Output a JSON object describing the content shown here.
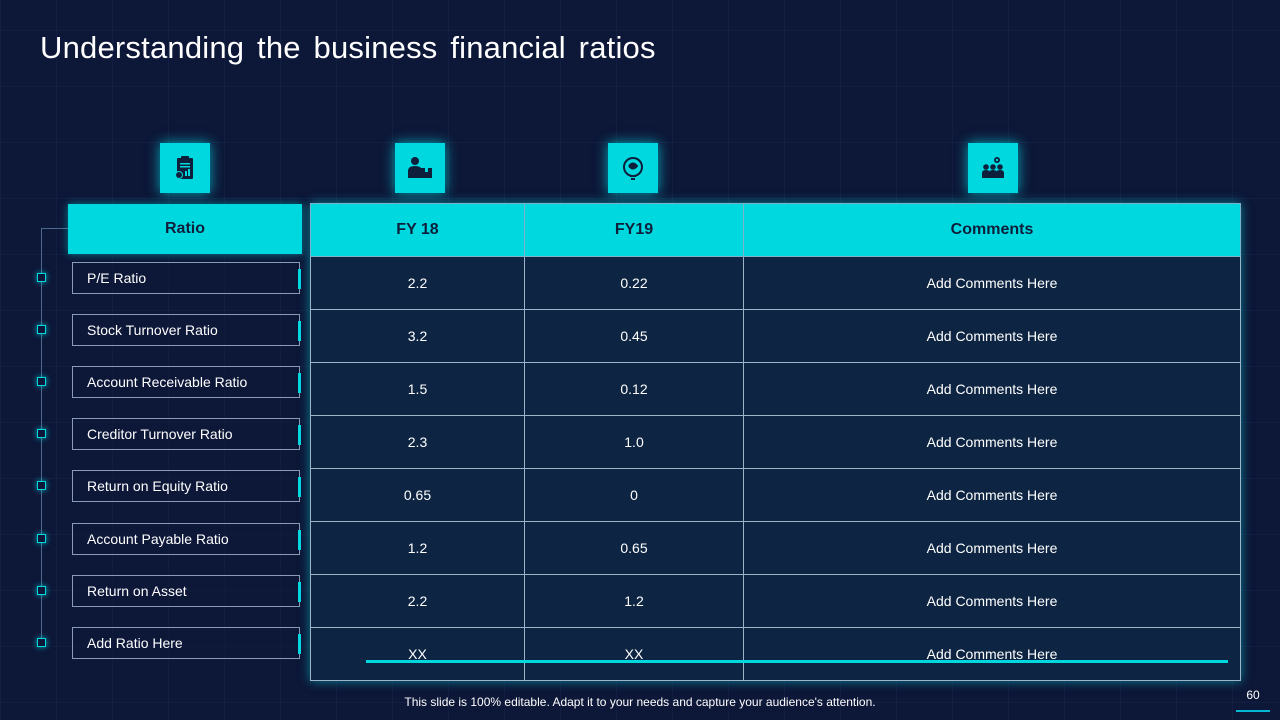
{
  "title": "Understanding  the  business  financial  ratios",
  "icons": [
    "clipboard-chart-icon",
    "person-box-icon",
    "brain-bulb-icon",
    "team-gear-icon"
  ],
  "ratio_header": "Ratio",
  "table": {
    "headers": [
      "FY 18",
      "FY19",
      "Comments"
    ],
    "rows": [
      {
        "ratio": "P/E Ratio",
        "fy18": "2.2",
        "fy19": "0.22",
        "comment": "Add Comments Here"
      },
      {
        "ratio": "Stock Turnover Ratio",
        "fy18": "3.2",
        "fy19": "0.45",
        "comment": "Add Comments Here"
      },
      {
        "ratio": "Account Receivable Ratio",
        "fy18": "1.5",
        "fy19": "0.12",
        "comment": "Add Comments Here"
      },
      {
        "ratio": "Creditor Turnover Ratio",
        "fy18": "2.3",
        "fy19": "1.0",
        "comment": "Add Comments Here"
      },
      {
        "ratio": "Return on Equity Ratio",
        "fy18": "0.65",
        "fy19": "0",
        "comment": "Add Comments Here"
      },
      {
        "ratio": "Account Payable Ratio",
        "fy18": "1.2",
        "fy19": "0.65",
        "comment": "Add Comments Here"
      },
      {
        "ratio": "Return on Asset",
        "fy18": "2.2",
        "fy19": "1.2",
        "comment": "Add Comments Here"
      },
      {
        "ratio": "Add Ratio Here",
        "fy18": "XX",
        "fy19": "XX",
        "comment": "Add Comments Here"
      }
    ]
  },
  "footer": "This slide is 100% editable. Adapt it to your needs and capture your audience's attention.",
  "page_number": "60",
  "colors": {
    "accent": "#00d8e0",
    "background": "#0d1738",
    "cell": "#0d2442"
  }
}
